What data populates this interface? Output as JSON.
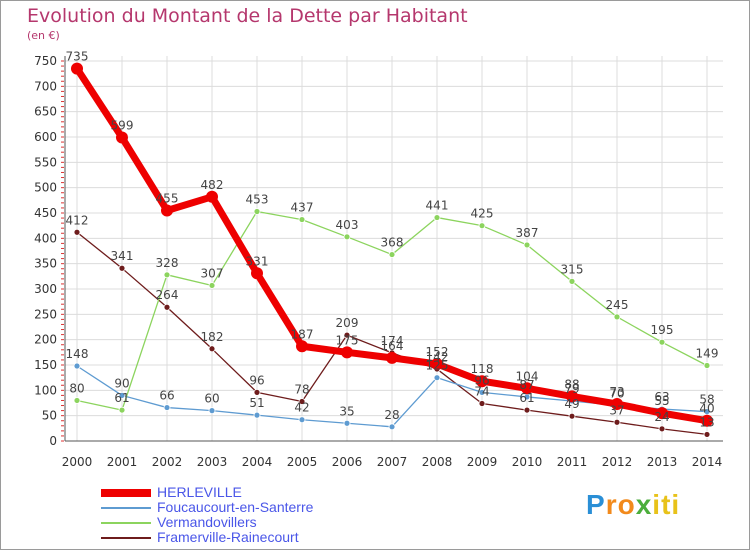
{
  "chart_data": {
    "type": "line",
    "title": "Evolution du Montant de la Dette par Habitant",
    "unit_label": "(en €)",
    "categories": [
      "2000",
      "2001",
      "2002",
      "2003",
      "2004",
      "2005",
      "2006",
      "2007",
      "2008",
      "2009",
      "2010",
      "2011",
      "2012",
      "2013",
      "2014"
    ],
    "ylim": [
      0,
      750
    ],
    "yticks": [
      0,
      50,
      100,
      150,
      200,
      250,
      300,
      350,
      400,
      450,
      500,
      550,
      600,
      650,
      700,
      750
    ],
    "grid": true,
    "legend_position": "bottom-left",
    "series": [
      {
        "name": "HERLEVILLE",
        "color": "#ee0000",
        "values": [
          735,
          599,
          455,
          482,
          331,
          187,
          175,
          164,
          152,
          118,
          104,
          88,
          73,
          55,
          40
        ]
      },
      {
        "name": "Foucaucourt-en-Santerre",
        "color": "#5e9bd1",
        "values": [
          148,
          90,
          66,
          60,
          51,
          42,
          35,
          28,
          125,
          96,
          87,
          79,
          70,
          63,
          58
        ]
      },
      {
        "name": "Vermandovillers",
        "color": "#8cd45e",
        "values": [
          80,
          61,
          328,
          307,
          453,
          437,
          403,
          368,
          441,
          425,
          387,
          315,
          245,
          195,
          149
        ]
      },
      {
        "name": "Framerville-Rainecourt",
        "color": "#6e1c1c",
        "values": [
          412,
          341,
          264,
          182,
          96,
          78,
          209,
          174,
          142,
          74,
          61,
          49,
          37,
          24,
          13
        ]
      }
    ],
    "data_labels": [
      {
        "series": "HERLEVILLE",
        "labels": [
          "735",
          "599",
          "455",
          "482",
          "331",
          "187",
          "175",
          "164",
          "152",
          "118",
          "104",
          "88",
          "73",
          "55",
          "40"
        ]
      },
      {
        "series": "Foucaucourt-en-Santerre",
        "labels": [
          "148",
          "90",
          "66",
          "60",
          "51",
          "42",
          "35",
          "28",
          "125",
          "96",
          "87",
          "79",
          "70",
          "63",
          "58"
        ]
      },
      {
        "series": "Vermandovillers",
        "labels": [
          "80",
          "61",
          "328",
          "307",
          "453",
          "437",
          "403",
          "368",
          "441",
          "425",
          "387",
          "315",
          "245",
          "195",
          "149"
        ]
      },
      {
        "series": "Framerville-Rainecourt",
        "labels": [
          "412",
          "341",
          "264",
          "182",
          "96",
          "78",
          "209",
          "174",
          "142",
          "74",
          "61",
          "49",
          "37",
          "24",
          "13"
        ]
      }
    ]
  },
  "logo": {
    "text": "Proxiti",
    "letters": [
      {
        "ch": "P",
        "color": "#2a8fd6"
      },
      {
        "ch": "r",
        "color": "#f28a1c"
      },
      {
        "ch": "o",
        "color": "#f28a1c"
      },
      {
        "ch": "x",
        "color": "#4cae3c"
      },
      {
        "ch": "i",
        "color": "#e8c21a"
      },
      {
        "ch": "t",
        "color": "#e8c21a"
      },
      {
        "ch": "i",
        "color": "#e8c21a"
      }
    ]
  }
}
